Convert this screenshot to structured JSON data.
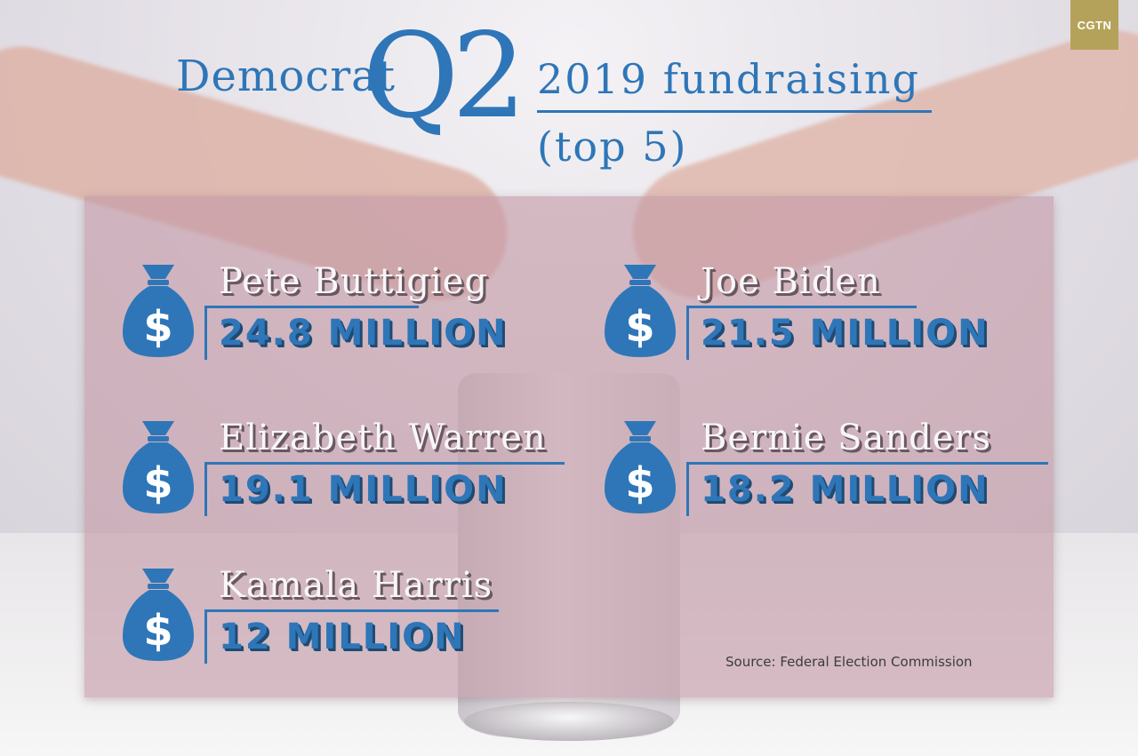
{
  "brand": {
    "logo_text": "CGTN",
    "logo_color": "#b5a25a"
  },
  "title": {
    "party": "Democrat",
    "quarter": "Q2",
    "year_line": "2019 fundraising",
    "subtitle": "(top 5)",
    "color": "#2e76b8"
  },
  "candidates": [
    {
      "name": "Pete Buttigieg",
      "amount": "24.8 MILLION",
      "icon": "money-bag-icon"
    },
    {
      "name": "Joe Biden",
      "amount": "21.5 MILLION",
      "icon": "money-bag-icon"
    },
    {
      "name": "Elizabeth Warren",
      "amount": "19.1 MILLION",
      "icon": "money-bag-icon"
    },
    {
      "name": "Bernie Sanders",
      "amount": "18.2 MILLION",
      "icon": "money-bag-icon"
    },
    {
      "name": "Kamala Harris",
      "amount": "12 MILLION",
      "icon": "money-bag-icon"
    }
  ],
  "source": "Source: Federal Election Commission"
}
